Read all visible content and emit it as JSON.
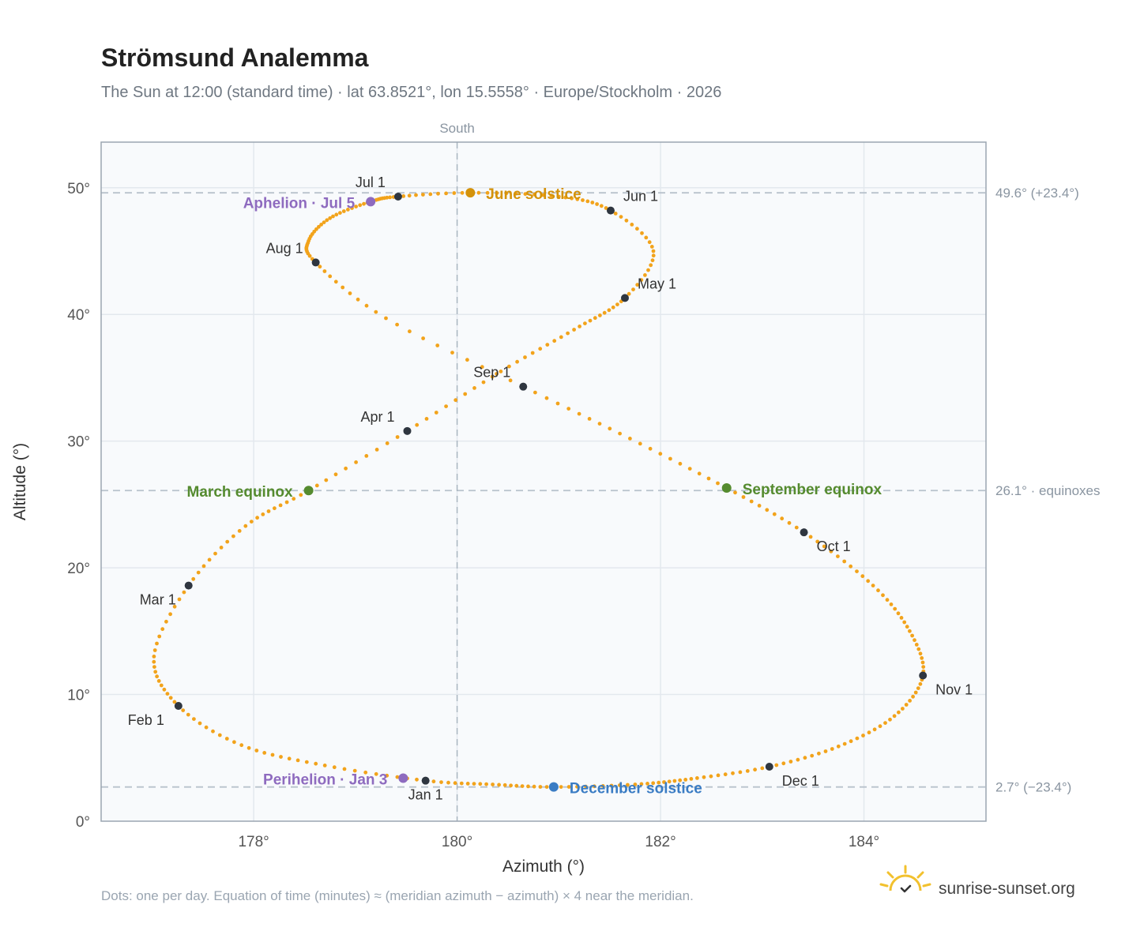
{
  "title": "Strömsund Analemma",
  "subtitle": "The Sun at 12:00 (standard time) · lat 63.8521°, lon 15.5558° · Europe/Stockholm · 2026",
  "footnote": "Dots: one per day. Equation of time (minutes) ≈ (meridian azimuth − azimuth) × 4 near the meridian.",
  "brand": {
    "text": "sunrise-sunset.org",
    "icon": "sun-check-logo-icon"
  },
  "colors": {
    "curve": "#F2A31B",
    "month_marker": "#2F3640",
    "solstice_june": "#D4920A",
    "solstice_december": "#3A7CC4",
    "equinox": "#558B2F",
    "apsis": "#8E6BBF",
    "ref_line": "#B8C2CC",
    "grid": "#E3E8EE",
    "plot_bg": "#F8FAFC"
  },
  "chart_data": {
    "type": "scatter",
    "title": "Strömsund Analemma",
    "xlabel": "Azimuth (°)",
    "ylabel": "Altitude (°)",
    "xlim": [
      176.5,
      185.2
    ],
    "ylim": [
      0,
      53.6
    ],
    "x_ticks": [
      {
        "value": 178,
        "label": "178°"
      },
      {
        "value": 180,
        "label": "180°"
      },
      {
        "value": 182,
        "label": "182°"
      },
      {
        "value": 184,
        "label": "184°"
      }
    ],
    "y_ticks": [
      {
        "value": 0,
        "label": "0°"
      },
      {
        "value": 10,
        "label": "10°"
      },
      {
        "value": 20,
        "label": "20°"
      },
      {
        "value": 30,
        "label": "30°"
      },
      {
        "value": 40,
        "label": "40°"
      },
      {
        "value": 50,
        "label": "50°"
      }
    ],
    "grid": true,
    "meridian": {
      "azimuth": 180,
      "label": "South"
    },
    "reference_lines": [
      {
        "altitude": 49.6,
        "label": "49.6° (+23.4°)"
      },
      {
        "altitude": 26.1,
        "label": "26.1° · equinoxes"
      },
      {
        "altitude": 2.7,
        "label": "2.7° (−23.4°)"
      }
    ],
    "month_markers": [
      {
        "label": "Jan 1",
        "azimuth": 179.69,
        "altitude": 3.2
      },
      {
        "label": "Feb 1",
        "azimuth": 177.26,
        "altitude": 9.1
      },
      {
        "label": "Mar 1",
        "azimuth": 177.36,
        "altitude": 18.6
      },
      {
        "label": "Apr 1",
        "azimuth": 179.51,
        "altitude": 30.8
      },
      {
        "label": "May 1",
        "azimuth": 181.65,
        "altitude": 41.3
      },
      {
        "label": "Jun 1",
        "azimuth": 181.51,
        "altitude": 48.2
      },
      {
        "label": "Jul 1",
        "azimuth": 179.42,
        "altitude": 49.3
      },
      {
        "label": "Aug 1",
        "azimuth": 178.61,
        "altitude": 44.1
      },
      {
        "label": "Sep 1",
        "azimuth": 180.65,
        "altitude": 34.3
      },
      {
        "label": "Oct 1",
        "azimuth": 183.41,
        "altitude": 22.8
      },
      {
        "label": "Nov 1",
        "azimuth": 184.58,
        "altitude": 11.5
      },
      {
        "label": "Dec 1",
        "azimuth": 183.07,
        "altitude": 4.3
      }
    ],
    "events": [
      {
        "label": "June solstice",
        "azimuth": 180.13,
        "altitude": 49.6,
        "kind": "solstice_june"
      },
      {
        "label": "December solstice",
        "azimuth": 180.95,
        "altitude": 2.7,
        "kind": "solstice_december"
      },
      {
        "label": "March equinox",
        "azimuth": 178.54,
        "altitude": 26.1,
        "kind": "equinox"
      },
      {
        "label": "September equinox",
        "azimuth": 182.65,
        "altitude": 26.3,
        "kind": "equinox"
      },
      {
        "label": "Aphelion · Jul 5",
        "azimuth": 179.15,
        "altitude": 48.9,
        "kind": "apsis"
      },
      {
        "label": "Perihelion · Jan 3",
        "azimuth": 179.47,
        "altitude": 3.4,
        "kind": "apsis"
      }
    ],
    "daily_points": [
      [
        179.69,
        3.2
      ],
      [
        178.7,
        4.4
      ],
      [
        177.88,
        6.0
      ],
      [
        177.26,
        9.1
      ],
      [
        177.02,
        13.0
      ],
      [
        177.36,
        18.6
      ],
      [
        177.92,
        23.3
      ],
      [
        178.54,
        26.1
      ],
      [
        179.51,
        30.8
      ],
      [
        180.43,
        35.5
      ],
      [
        181.15,
        38.8
      ],
      [
        181.65,
        41.3
      ],
      [
        181.93,
        45.0
      ],
      [
        181.51,
        48.2
      ],
      [
        181.0,
        49.3
      ],
      [
        180.13,
        49.6
      ],
      [
        179.42,
        49.3
      ],
      [
        179.15,
        48.9
      ],
      [
        178.75,
        47.6
      ],
      [
        178.54,
        45.8
      ],
      [
        178.61,
        44.1
      ],
      [
        179.3,
        39.7
      ],
      [
        180.65,
        34.3
      ],
      [
        181.7,
        30.2
      ],
      [
        182.65,
        26.3
      ],
      [
        183.41,
        22.8
      ],
      [
        184.09,
        18.6
      ],
      [
        184.45,
        15.0
      ],
      [
        184.58,
        11.5
      ],
      [
        184.3,
        8.3
      ],
      [
        183.75,
        5.9
      ],
      [
        183.07,
        4.3
      ],
      [
        182.36,
        3.4
      ],
      [
        181.75,
        2.9
      ],
      [
        180.95,
        2.7
      ],
      [
        180.35,
        2.9
      ],
      [
        179.69,
        3.2
      ]
    ]
  }
}
